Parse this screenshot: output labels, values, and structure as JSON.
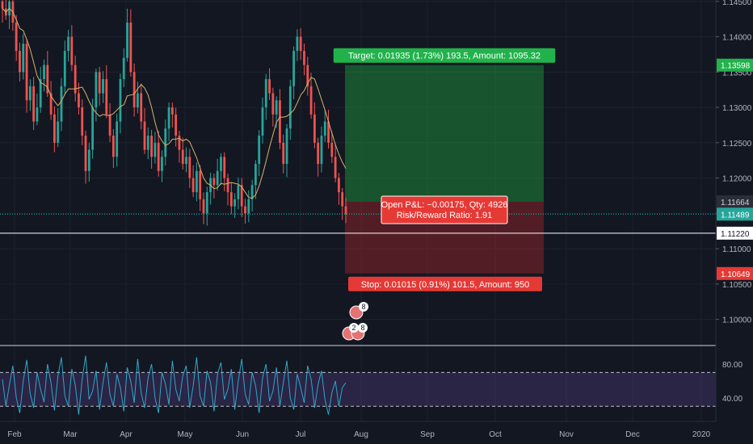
{
  "chart_data": {
    "type": "candlestick",
    "instrument_note": "",
    "price_axis": {
      "ticks": [
        "1.14500",
        "1.14000",
        "1.13500",
        "1.13000",
        "1.12500",
        "1.12000",
        "1.11500",
        "1.11000",
        "1.10500",
        "1.10000"
      ],
      "ylim": [
        1.0963,
        1.1452
      ]
    },
    "time_axis": {
      "ticks": [
        "Feb",
        "Mar",
        "Apr",
        "May",
        "Jun",
        "Jul",
        "Aug",
        "Sep",
        "Oct",
        "Nov",
        "Dec",
        "2020"
      ]
    },
    "price_labels": {
      "target": "1.13598",
      "entry": "1.11664",
      "current": "1.11489",
      "line": "1.11220",
      "stop": "1.10649"
    },
    "position": {
      "target_text": "Target: 0.01935 (1.73%) 193.5, Amount: 1095.32",
      "pnl_text": "Open P&L: −0.00175, Qty: 4926",
      "rr_text": "Risk/Reward Ratio: 1.91",
      "stop_text": "Stop: 0.01015 (0.91%) 101.5, Amount: 950",
      "entry": 1.11664,
      "target": 1.13598,
      "stop": 1.10649
    },
    "horizontal_line": 1.1122,
    "current_price": 1.11489,
    "close_series": [
      1.144,
      1.143,
      1.145,
      1.142,
      1.138,
      1.135,
      1.139,
      1.131,
      1.133,
      1.128,
      1.13,
      1.134,
      1.136,
      1.132,
      1.129,
      1.125,
      1.128,
      1.133,
      1.138,
      1.14,
      1.136,
      1.132,
      1.13,
      1.126,
      1.121,
      1.124,
      1.13,
      1.135,
      1.132,
      1.134,
      1.129,
      1.126,
      1.123,
      1.128,
      1.134,
      1.137,
      1.142,
      1.135,
      1.13,
      1.132,
      1.128,
      1.124,
      1.126,
      1.123,
      1.125,
      1.121,
      1.123,
      1.127,
      1.13,
      1.129,
      1.126,
      1.124,
      1.122,
      1.123,
      1.12,
      1.118,
      1.121,
      1.117,
      1.115,
      1.118,
      1.12,
      1.119,
      1.121,
      1.123,
      1.12,
      1.118,
      1.116,
      1.117,
      1.119,
      1.116,
      1.115,
      1.117,
      1.119,
      1.122,
      1.126,
      1.13,
      1.134,
      1.132,
      1.129,
      1.131,
      1.125,
      1.122,
      1.127,
      1.133,
      1.138,
      1.14,
      1.138,
      1.136,
      1.133,
      1.129,
      1.125,
      1.122,
      1.126,
      1.128,
      1.125,
      1.123,
      1.12,
      1.118,
      1.116,
      1.11489
    ],
    "oscillator": {
      "ticks": [
        "80.00",
        "40.00"
      ],
      "ylim": [
        12,
        102
      ],
      "upper": 70,
      "lower": 30,
      "values": [
        62,
        30,
        55,
        78,
        40,
        22,
        60,
        85,
        45,
        28,
        70,
        50,
        35,
        80,
        58,
        25,
        66,
        88,
        42,
        30,
        74,
        55,
        20,
        62,
        90,
        38,
        48,
        72,
        26,
        58,
        82,
        44,
        30,
        68,
        52,
        24,
        76,
        60,
        34,
        86,
        46,
        28,
        64,
        80,
        40,
        22,
        70,
        56,
        32,
        84,
        50,
        36,
        66,
        78,
        28,
        54,
        88,
        42,
        30,
        72,
        58,
        24,
        68,
        82,
        38,
        50,
        74,
        26,
        60,
        86,
        44,
        32,
        70,
        54,
        22,
        64,
        80,
        36,
        48,
        76,
        30,
        58,
        84,
        40,
        26,
        68,
        52,
        34,
        78,
        62,
        28,
        56,
        72,
        38,
        20,
        46,
        60,
        30,
        52,
        58
      ]
    },
    "badges": [
      "8",
      "2",
      "8"
    ]
  }
}
